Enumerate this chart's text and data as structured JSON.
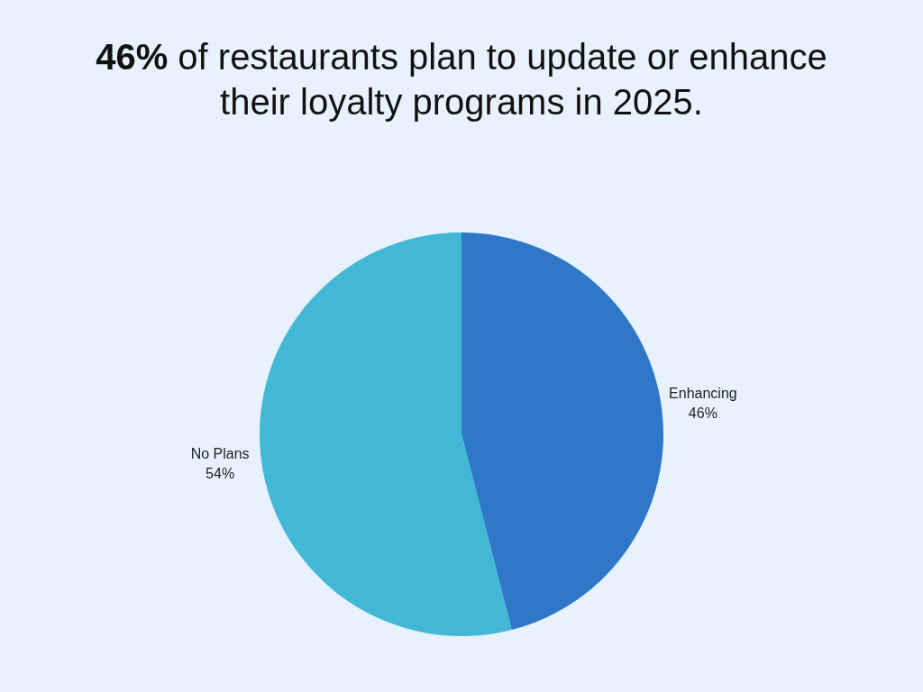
{
  "chart_data": {
    "type": "pie",
    "title": "46% of restaurants plan to update or enhance their loyalty programs in 2025.",
    "categories": [
      "Enhancing",
      "No Plans"
    ],
    "values": [
      46,
      54
    ],
    "value_labels": [
      "46%",
      "54%"
    ],
    "colors": [
      "#2e78c7",
      "#42b7d6"
    ]
  }
}
